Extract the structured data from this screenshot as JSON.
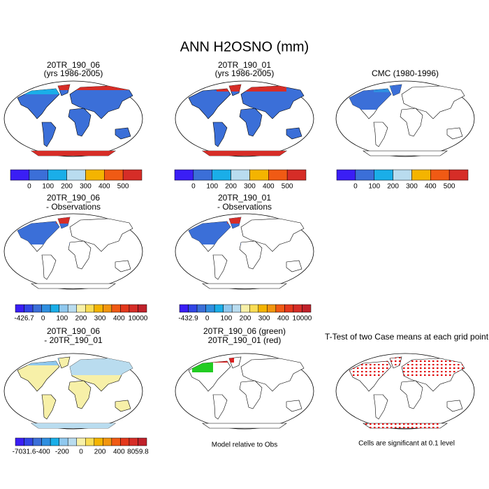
{
  "title": "ANN H2OSNO (mm)",
  "panels": [
    {
      "title": [
        "20TR_190_06",
        "(yrs 1986-2005)"
      ]
    },
    {
      "title": [
        "20TR_190_01",
        "(yrs 1986-2005)"
      ]
    },
    {
      "title": [
        "CMC (1980-1996)"
      ]
    },
    {
      "title": [
        "20TR_190_06",
        "- Observations"
      ]
    },
    {
      "title": [
        "20TR_190_01",
        "- Observations"
      ]
    },
    {
      "title": [
        "20TR_190_06",
        "- 20TR_190_01"
      ]
    },
    {
      "title": [
        "20TR_190_06 (green)",
        "20TR_190_01 (red)"
      ]
    },
    {
      "title": [
        "T-Test of two Case means at each grid point"
      ]
    }
  ],
  "colorbars": [
    {
      "labels": [
        0,
        100,
        200,
        300,
        400,
        500
      ],
      "colors": [
        "#3a1ef5",
        "#3b6fd8",
        "#1aaee8",
        "#b9dcef",
        "#f4b400",
        "#f05a14",
        "#d62d27"
      ]
    },
    {
      "labels": [
        0,
        100,
        200,
        300,
        400,
        500
      ],
      "colors": [
        "#3a1ef5",
        "#3b6fd8",
        "#1aaee8",
        "#b9dcef",
        "#f4b400",
        "#f05a14",
        "#d62d27"
      ]
    },
    {
      "labels": [
        0,
        100,
        200,
        300,
        400,
        500
      ],
      "colors": [
        "#3a1ef5",
        "#3b6fd8",
        "#1aaee8",
        "#b9dcef",
        "#f4b400",
        "#f05a14",
        "#d62d27"
      ]
    },
    {
      "labels": [
        -426.7,
        0,
        100,
        200,
        300,
        400,
        10000
      ],
      "colors": [
        "#3a1ef5",
        "#3145e6",
        "#3b6fd8",
        "#2f8fe0",
        "#1aaee8",
        "#8fc8ee",
        "#b9dcef",
        "#f7f0a8",
        "#f9dd55",
        "#f4b400",
        "#f2960f",
        "#f05a14",
        "#e4381c",
        "#d62d27",
        "#c0212a"
      ]
    },
    {
      "labels": [
        -432.9,
        0,
        100,
        200,
        300,
        400,
        10000
      ],
      "colors": [
        "#3a1ef5",
        "#3145e6",
        "#3b6fd8",
        "#2f8fe0",
        "#1aaee8",
        "#8fc8ee",
        "#b9dcef",
        "#f7f0a8",
        "#f9dd55",
        "#f4b400",
        "#f2960f",
        "#f05a14",
        "#e4381c",
        "#d62d27",
        "#c0212a"
      ]
    },
    {
      "labels": [
        -7031.6,
        -400,
        -200,
        0,
        200,
        400,
        8059.8
      ],
      "colors": [
        "#3a1ef5",
        "#3145e6",
        "#3b6fd8",
        "#2f8fe0",
        "#1aaee8",
        "#8fc8ee",
        "#b9dcef",
        "#f7f0a8",
        "#f9dd55",
        "#f4b400",
        "#f2960f",
        "#f05a14",
        "#e4381c",
        "#d62d27",
        "#c0212a"
      ]
    }
  ],
  "notes": [
    "Model relative to Obs",
    "Cells are significant at 0.1 level"
  ]
}
